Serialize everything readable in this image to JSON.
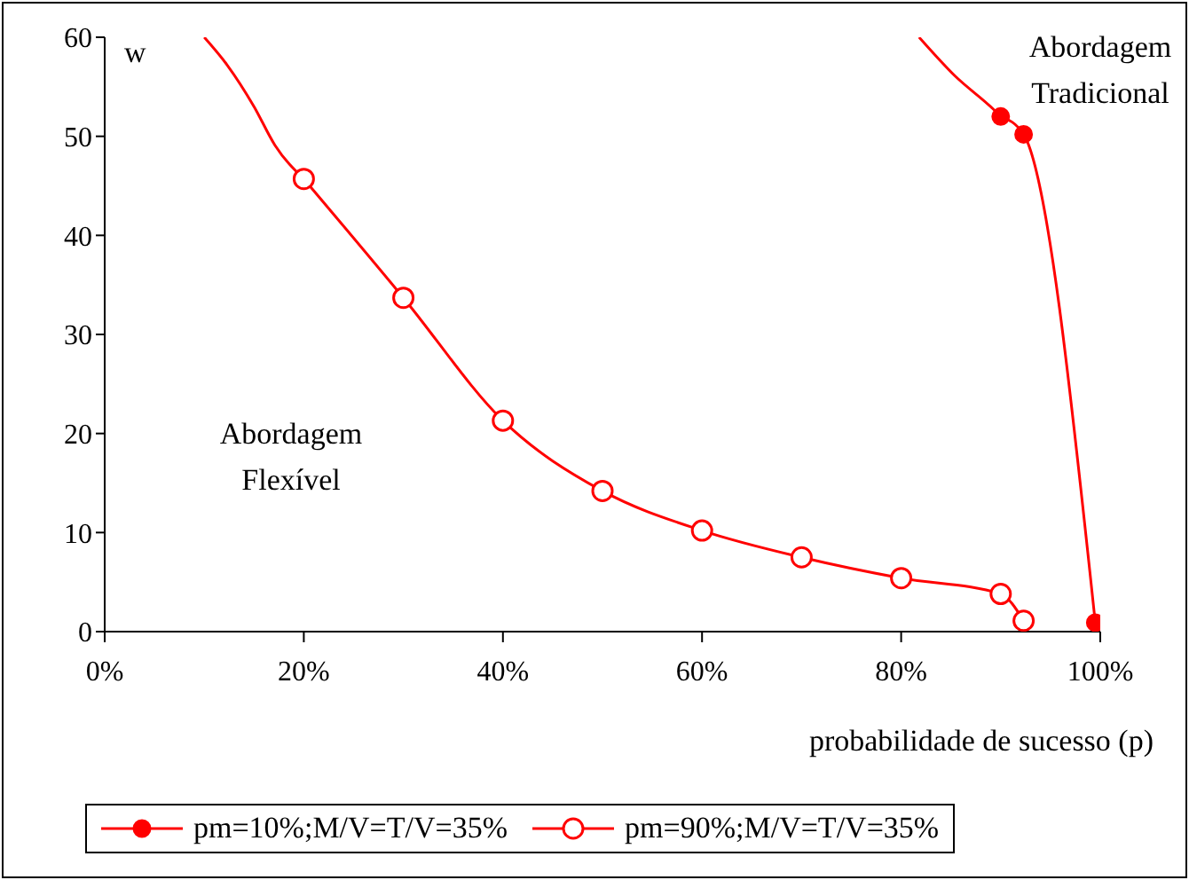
{
  "chart_data": {
    "type": "line",
    "xlabel": "probabilidade de sucesso (p)",
    "ylabel": "w",
    "xlim": [
      0,
      1
    ],
    "ylim": [
      0,
      60
    ],
    "xticks": [
      {
        "value": 0,
        "label": "0%"
      },
      {
        "value": 0.2,
        "label": "20%"
      },
      {
        "value": 0.4,
        "label": "40%"
      },
      {
        "value": 0.6,
        "label": "60%"
      },
      {
        "value": 0.8,
        "label": "80%"
      },
      {
        "value": 1,
        "label": "100%"
      }
    ],
    "yticks": [
      0,
      10,
      20,
      30,
      40,
      50,
      60
    ],
    "legend": "bottom",
    "line_style": "solid",
    "annotations": [
      "Abordagem Flexível",
      "Abordagem Tradicional"
    ],
    "series": [
      {
        "name": "pm=10%;M/V=T/V=35%",
        "color": "#ff0000",
        "marker": "circle",
        "x": [
          0.9,
          0.923,
          0.995
        ],
        "values": [
          52.0,
          50.2,
          0.9
        ]
      },
      {
        "name": "pm=90%;M/V=T/V=35%",
        "color": "#ff0000",
        "marker": "circle",
        "x": [
          0.2,
          0.3,
          0.4,
          0.5,
          0.6,
          0.7,
          0.8,
          0.9,
          0.923
        ],
        "values": [
          45.7,
          33.7,
          21.3,
          14.2,
          10.2,
          7.5,
          5.4,
          3.8,
          1.1
        ]
      },
      {
        "color": "#ff0000",
        "marker": "none",
        "x": [
          0.818,
          0.854,
          0.893,
          0.9
        ],
        "values": [
          60,
          56.1,
          52.7,
          52.0
        ]
      },
      {
        "color": "#ff0000",
        "marker": "none",
        "x": [
          0.1,
          0.123,
          0.15,
          0.171,
          0.2
        ],
        "values": [
          60,
          57.2,
          53,
          49.1,
          45.7
        ]
      }
    ]
  }
}
